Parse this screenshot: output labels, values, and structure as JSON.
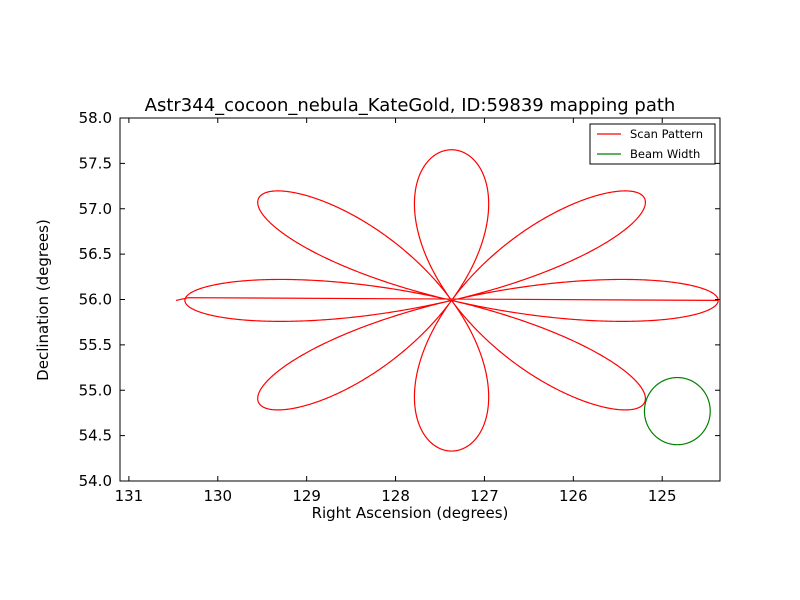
{
  "chart_data": {
    "type": "line",
    "title": "Astr344_cocoon_nebula_KateGold, ID:59839 mapping path",
    "xlabel": "Right Ascension (degrees)",
    "ylabel": "Declination (degrees)",
    "xlim": [
      131.1,
      124.35
    ],
    "ylim": [
      54.0,
      58.0
    ],
    "x_inverted": true,
    "xticks": [
      131,
      130,
      129,
      128,
      127,
      126,
      125
    ],
    "xtick_labels": [
      "131",
      "130",
      "129",
      "128",
      "127",
      "126",
      "125"
    ],
    "yticks": [
      54.0,
      54.5,
      55.0,
      55.5,
      56.0,
      56.5,
      57.0,
      57.5,
      58.0
    ],
    "ytick_labels": [
      "54.0",
      "54.5",
      "55.0",
      "55.5",
      "56.0",
      "56.5",
      "57.0",
      "57.5",
      "58.0"
    ],
    "grid": false,
    "legend_position": "top-right",
    "series": [
      {
        "name": "Scan Pattern",
        "color": "#ff0000",
        "pattern": "rose",
        "center": {
          "ra": 127.37,
          "dec": 55.99
        },
        "amplitude_ra": 3.0,
        "amplitude_dec": 1.66,
        "petals": 8,
        "tail": [
          [
            130.47,
            55.99
          ],
          [
            130.33,
            56.02
          ]
        ]
      },
      {
        "name": "Beam Width",
        "color": "#008000",
        "pattern": "circle",
        "center": {
          "ra": 124.83,
          "dec": 54.77
        },
        "radius_ra": 0.37,
        "radius_dec": 0.37
      }
    ]
  }
}
